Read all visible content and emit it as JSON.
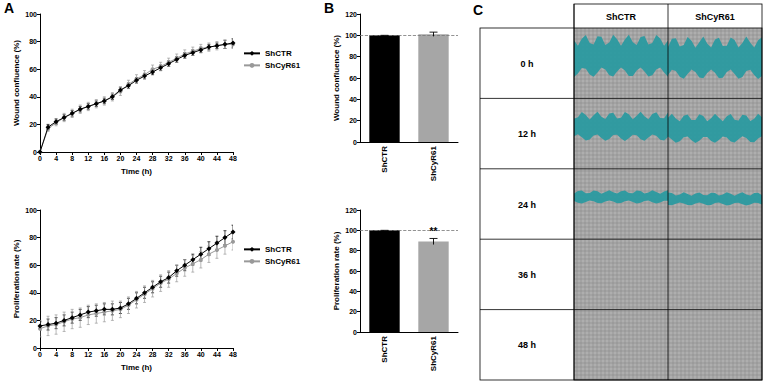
{
  "chart_data": [
    {
      "type": "line",
      "annotation": "A",
      "x_label": "Time (h)",
      "y_label": "Wound confluence (%)",
      "x": [
        0,
        2,
        4,
        6,
        8,
        10,
        12,
        14,
        16,
        18,
        20,
        22,
        24,
        26,
        28,
        30,
        32,
        34,
        36,
        38,
        40,
        42,
        44,
        46,
        48
      ],
      "series": [
        {
          "name": "ShCTR",
          "color": "#000000",
          "marker": "diamond",
          "values": [
            0,
            18,
            22,
            25,
            28,
            31,
            33,
            35,
            37,
            40,
            45,
            48,
            52,
            55,
            58,
            61,
            64,
            67,
            70,
            72,
            74,
            76,
            77,
            78,
            79
          ],
          "errors": [
            0,
            2,
            2,
            2,
            2,
            2,
            2,
            2,
            2,
            2,
            2,
            2,
            2,
            2,
            2,
            2,
            2,
            2,
            2,
            2,
            2,
            2,
            2,
            3,
            3
          ]
        },
        {
          "name": "ShCyR61",
          "color": "#999999",
          "marker": "circle",
          "values": [
            0,
            17,
            21,
            25,
            28,
            31,
            33,
            35,
            37,
            40,
            44,
            49,
            53,
            56,
            60,
            62,
            65,
            68,
            71,
            73,
            75,
            76,
            77,
            78,
            78
          ],
          "errors": [
            0,
            2,
            2,
            3,
            3,
            3,
            3,
            3,
            3,
            3,
            3,
            3,
            3,
            3,
            3,
            3,
            3,
            3,
            3,
            3,
            3,
            3,
            3,
            3,
            3
          ]
        }
      ],
      "xlim": [
        0,
        48
      ],
      "xticks": [
        0,
        4,
        8,
        12,
        16,
        20,
        24,
        28,
        32,
        36,
        40,
        44,
        48
      ],
      "ylim": [
        0,
        100
      ],
      "yticks": [
        0,
        20,
        40,
        60,
        80,
        100
      ],
      "grid": false,
      "legend": "right"
    },
    {
      "type": "line",
      "x_label": "Time (h)",
      "y_label": "Proliferation rate (%)",
      "x": [
        0,
        2,
        4,
        6,
        8,
        10,
        12,
        14,
        16,
        18,
        20,
        22,
        24,
        26,
        28,
        30,
        32,
        34,
        36,
        38,
        40,
        42,
        44,
        46,
        48
      ],
      "series": [
        {
          "name": "ShCTR",
          "color": "#000000",
          "marker": "diamond",
          "values": [
            16,
            17,
            18,
            20,
            22,
            24,
            26,
            27,
            28,
            28,
            29,
            32,
            36,
            40,
            44,
            48,
            51,
            56,
            60,
            64,
            68,
            72,
            76,
            80,
            84
          ],
          "errors": [
            3,
            4,
            4,
            4,
            4,
            4,
            4,
            4,
            4,
            4,
            4,
            4,
            4,
            4,
            4,
            4,
            4,
            4,
            4,
            4,
            5,
            5,
            5,
            5,
            5
          ]
        },
        {
          "name": "ShCyR61",
          "color": "#999999",
          "marker": "circle",
          "values": [
            14,
            16,
            17,
            19,
            21,
            22,
            24,
            25,
            26,
            27,
            28,
            31,
            35,
            39,
            43,
            47,
            50,
            54,
            58,
            61,
            64,
            68,
            71,
            74,
            77
          ],
          "errors": [
            6,
            7,
            7,
            7,
            7,
            7,
            7,
            7,
            7,
            7,
            6,
            6,
            6,
            6,
            6,
            6,
            6,
            6,
            6,
            6,
            6,
            6,
            6,
            6,
            6
          ]
        }
      ],
      "xlim": [
        0,
        48
      ],
      "xticks": [
        0,
        4,
        8,
        12,
        16,
        20,
        24,
        28,
        32,
        36,
        40,
        44,
        48
      ],
      "ylim": [
        0,
        100
      ],
      "yticks": [
        0,
        20,
        40,
        60,
        80,
        100
      ],
      "grid": false,
      "legend": "right"
    },
    {
      "type": "bar",
      "annotation": "B",
      "y_label": "Wound confluence (%)",
      "categories": [
        "ShCTR",
        "ShCyR61"
      ],
      "values": [
        100,
        101
      ],
      "errors": [
        0,
        2
      ],
      "colors": [
        "#000000",
        "#a6a6a6"
      ],
      "reference_line": 100,
      "ylim": [
        0,
        120
      ],
      "yticks": [
        0,
        20,
        40,
        60,
        80,
        100,
        120
      ],
      "grid": false
    },
    {
      "type": "bar",
      "y_label": "Proliferation rate (%)",
      "categories": [
        "ShCTR",
        "ShCyR61"
      ],
      "values": [
        100,
        89
      ],
      "errors": [
        0,
        3
      ],
      "colors": [
        "#000000",
        "#a6a6a6"
      ],
      "reference_line": 100,
      "annotations": [
        null,
        "**"
      ],
      "ylim": [
        0,
        120
      ],
      "yticks": [
        0,
        20,
        40,
        60,
        80,
        100,
        120
      ],
      "grid": false
    }
  ],
  "panel_c": {
    "label": "C",
    "columns": [
      "ShCTR",
      "ShCyR61"
    ],
    "rows": [
      "0 h",
      "12 h",
      "24 h",
      "36 h",
      "48 h"
    ]
  }
}
